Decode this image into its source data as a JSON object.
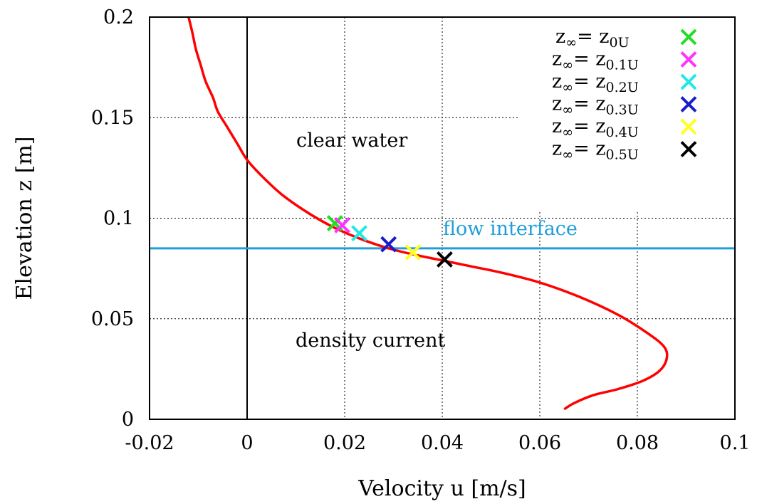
{
  "chart_data": {
    "type": "line",
    "xlabel": "Velocity u [m/s]",
    "ylabel": "Elevation z [m]",
    "xlim": [
      -0.02,
      0.1
    ],
    "ylim": [
      0,
      0.2
    ],
    "xticks": [
      "-0.02",
      "0",
      "0.02",
      "0.04",
      "0.06",
      "0.08",
      "0.1"
    ],
    "yticks": [
      "0",
      "0.05",
      "0.1",
      "0.15",
      "0.2"
    ],
    "grid": true,
    "legend_position": "top-right",
    "colors": {
      "profile": "#ff0000",
      "interface": "#1f9fd8"
    },
    "profile": {
      "x": [
        0.065,
        0.067,
        0.071,
        0.076,
        0.081,
        0.0845,
        0.086,
        0.0855,
        0.082,
        0.076,
        0.068,
        0.06,
        0.052,
        0.046,
        0.04,
        0.034,
        0.029,
        0.024,
        0.019,
        0.015,
        0.011,
        0.007,
        0.003,
        0.0,
        -0.002,
        -0.004,
        -0.006,
        -0.007,
        -0.0085,
        -0.0095,
        -0.0105,
        -0.0112,
        -0.012
      ],
      "y": [
        0.005,
        0.008,
        0.012,
        0.015,
        0.019,
        0.024,
        0.03,
        0.036,
        0.043,
        0.052,
        0.061,
        0.068,
        0.073,
        0.076,
        0.079,
        0.082,
        0.085,
        0.089,
        0.094,
        0.099,
        0.105,
        0.112,
        0.121,
        0.129,
        0.137,
        0.145,
        0.153,
        0.16,
        0.168,
        0.176,
        0.184,
        0.192,
        0.2
      ]
    },
    "interface_z": 0.085,
    "annotations": [
      {
        "text": "clear water",
        "x": 0.023,
        "y": 0.138
      },
      {
        "text": "flow interface",
        "x": 0.04,
        "y": 0.091
      },
      {
        "text": "density current",
        "x": 0.025,
        "y": 0.037
      }
    ],
    "markers": [
      {
        "base": "z",
        "sub": "∞",
        "eq": "= z",
        "sub2": "0U",
        "color": "#22dd22",
        "x": 0.018,
        "y": 0.0975
      },
      {
        "base": "z",
        "sub": "∞",
        "eq": "= z",
        "sub2": "0.1U",
        "color": "#ff33ff",
        "x": 0.0195,
        "y": 0.0965
      },
      {
        "base": "z",
        "sub": "∞",
        "eq": "= z",
        "sub2": "0.2U",
        "color": "#22e8e8",
        "x": 0.023,
        "y": 0.0925
      },
      {
        "base": "z",
        "sub": "∞",
        "eq": "= z",
        "sub2": "0.3U",
        "color": "#1a1acc",
        "x": 0.029,
        "y": 0.087
      },
      {
        "base": "z",
        "sub": "∞",
        "eq": "= z",
        "sub2": "0.4U",
        "color": "#ffff22",
        "x": 0.034,
        "y": 0.083
      },
      {
        "base": "z",
        "sub": "∞",
        "eq": "= z",
        "sub2": "0.5U",
        "color": "#000000",
        "x": 0.0405,
        "y": 0.0795
      }
    ]
  }
}
